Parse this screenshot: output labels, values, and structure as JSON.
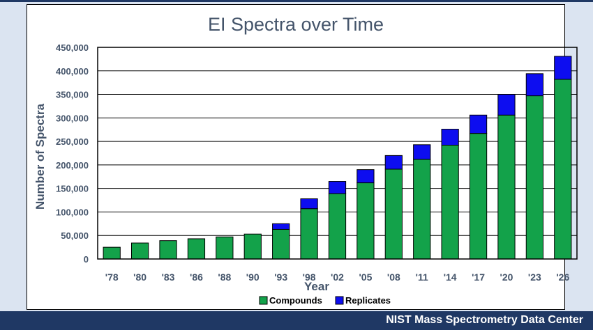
{
  "colors": {
    "compounds": "#13a24a",
    "replicates": "#0d0df0",
    "text": "#44546a",
    "footer_bg": "#1f3864",
    "page_bg": "#dbe4f1"
  },
  "footer": {
    "text": "NIST Mass Spectrometry Data Center"
  },
  "chart_data": {
    "type": "bar",
    "stacked": true,
    "title": "EI Spectra over Time",
    "xlabel": "Year",
    "ylabel": "Number of Spectra",
    "ylim": [
      0,
      450000
    ],
    "yticks": [
      "0",
      "50,000",
      "100,000",
      "150,000",
      "200,000",
      "250,000",
      "300,000",
      "350,000",
      "400,000",
      "450,000"
    ],
    "ytick_values": [
      0,
      50000,
      100000,
      150000,
      200000,
      250000,
      300000,
      350000,
      400000,
      450000
    ],
    "grid": "horizontal",
    "legend_position": "bottom",
    "categories": [
      "'78",
      "'80",
      "'83",
      "'86",
      "'88",
      "'90",
      "'93",
      "'98",
      "'02",
      "'05",
      "'08",
      "'11",
      "'14",
      "'17",
      "'20",
      "'23",
      "'26"
    ],
    "series": [
      {
        "name": "Compounds",
        "values": [
          25000,
          34000,
          39000,
          43000,
          47000,
          53000,
          63000,
          107000,
          139000,
          162000,
          191000,
          212000,
          242000,
          267000,
          306000,
          347000,
          382000
        ]
      },
      {
        "name": "Replicates",
        "values": [
          0,
          0,
          0,
          0,
          0,
          0,
          12000,
          21000,
          26000,
          28000,
          29000,
          31000,
          34000,
          39000,
          44000,
          47000,
          49000
        ]
      }
    ]
  }
}
